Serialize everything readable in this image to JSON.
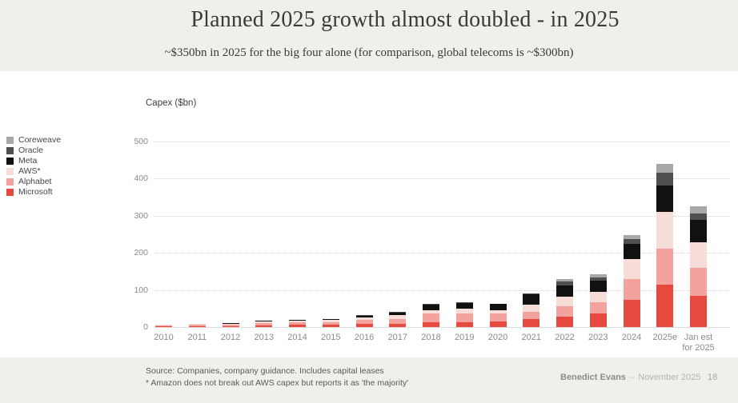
{
  "header": {
    "title": "Planned 2025 growth almost doubled - in 2025",
    "subtitle": "~$350bn in 2025 for the big four alone (for comparison, global telecoms is ~$300bn)"
  },
  "chart": {
    "axis_title": "Capex ($bn)"
  },
  "legend": {
    "items": [
      {
        "label": "Coreweave",
        "color": "#a8a8a8"
      },
      {
        "label": "Oracle",
        "color": "#4f4f4f"
      },
      {
        "label": "Meta",
        "color": "#111111"
      },
      {
        "label": "AWS*",
        "color": "#f6ddd8"
      },
      {
        "label": "Alphabet",
        "color": "#f4a29d"
      },
      {
        "label": "Microsoft",
        "color": "#e64a3f"
      }
    ]
  },
  "chart_data": {
    "type": "bar",
    "stacked": true,
    "title": "Capex ($bn)",
    "ylabel": "Capex ($bn)",
    "xlabel": "",
    "ylim": [
      0,
      500
    ],
    "yticks": [
      0,
      100,
      200,
      300,
      400,
      500
    ],
    "grid": "horizontal-dotted",
    "legend_position": "left",
    "categories": [
      "2010",
      "2011",
      "2012",
      "2013",
      "2014",
      "2015",
      "2016",
      "2017",
      "2018",
      "2019",
      "2020",
      "2021",
      "2022",
      "2023",
      "2024",
      "2025e",
      "Jan est\nfor 2025"
    ],
    "series": [
      {
        "name": "Microsoft",
        "color": "#e64a3f",
        "values": [
          1.9,
          2.3,
          2.3,
          4.3,
          5.5,
          5.9,
          9.1,
          9.1,
          12,
          14,
          15,
          21,
          28,
          37,
          73,
          115,
          85
        ]
      },
      {
        "name": "Alphabet",
        "color": "#f4a29d",
        "values": [
          3.0,
          3.4,
          3.3,
          7.4,
          8.0,
          8.0,
          10.2,
          13.2,
          25,
          23.5,
          21,
          20,
          28,
          30,
          57,
          97,
          75
        ]
      },
      {
        "name": "AWS*",
        "color": "#f6ddd8",
        "values": [
          0.9,
          1.8,
          2.7,
          3.4,
          4.3,
          4.5,
          6.7,
          10.1,
          9,
          12.5,
          10,
          20,
          26,
          27,
          54,
          98,
          68
        ]
      },
      {
        "name": "Meta",
        "color": "#111111",
        "values": [
          0,
          0.6,
          1.6,
          1.4,
          1.8,
          2.5,
          4.5,
          6.7,
          14,
          15,
          15.7,
          27,
          31,
          30,
          40,
          72,
          60
        ]
      },
      {
        "name": "Oracle",
        "color": "#4f4f4f",
        "values": [
          0,
          0,
          0,
          0,
          0,
          0,
          2.0,
          2.0,
          1.6,
          1.7,
          1.6,
          3,
          9.5,
          9.5,
          14,
          33,
          17
        ]
      },
      {
        "name": "Coreweave",
        "color": "#a8a8a8",
        "values": [
          0,
          0,
          0,
          0,
          0,
          0,
          0,
          0,
          0,
          0,
          0,
          0,
          6.5,
          9,
          9,
          25,
          20
        ]
      }
    ]
  },
  "footer": {
    "source_line1": "Source: Companies, company guidance. Includes capital leases",
    "source_line2": "* Amazon does not break out AWS capex but reports it as 'the majority'",
    "author": "Benedict Evans",
    "separator": "--",
    "date": "November 2025",
    "page_number": "18"
  }
}
